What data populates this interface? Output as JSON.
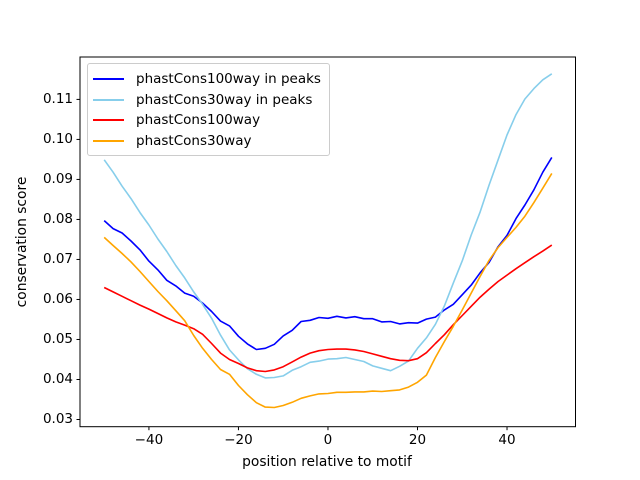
{
  "figure": {
    "background": "#ffffff",
    "axes": {
      "x_label": "position relative to motif",
      "y_label": "conservation score",
      "xlim": [
        -55.4,
        55.3
      ],
      "ylim": [
        0.0282,
        0.1206
      ],
      "x_ticks": [
        -40,
        -20,
        0,
        20,
        40
      ],
      "x_tick_labels": [
        "−40",
        "−20",
        "0",
        "20",
        "40"
      ],
      "y_ticks": [
        0.03,
        0.04,
        0.05,
        0.06,
        0.07,
        0.08,
        0.09,
        0.1,
        0.11
      ],
      "y_tick_labels": [
        "0.03",
        "0.04",
        "0.05",
        "0.06",
        "0.07",
        "0.08",
        "0.09",
        "0.10",
        "0.11"
      ],
      "spine_color": "#000000",
      "grid": false
    },
    "legend": {
      "position": "upper left",
      "border_color": "#cccccc",
      "background": "rgba(255,255,255,0.8)"
    }
  },
  "chart_data": {
    "type": "line",
    "title": "",
    "xlabel": "position relative to motif",
    "ylabel": "conservation score",
    "xlim": [
      -55.4,
      55.3
    ],
    "ylim": [
      0.0282,
      0.1206
    ],
    "grid": false,
    "legend_position": "upper left",
    "x": [
      -50,
      -48,
      -46,
      -44,
      -42,
      -40,
      -38,
      -36,
      -34,
      -32,
      -30,
      -28,
      -26,
      -24,
      -22,
      -20,
      -18,
      -16,
      -14,
      -12,
      -10,
      -8,
      -6,
      -4,
      -2,
      0,
      2,
      4,
      6,
      8,
      10,
      12,
      14,
      16,
      18,
      20,
      22,
      24,
      26,
      28,
      30,
      32,
      34,
      36,
      38,
      40,
      42,
      44,
      46,
      48,
      50
    ],
    "series": [
      {
        "name": "phastCons100way in peaks",
        "color": "#0000ff",
        "values": [
          0.0797,
          0.0777,
          0.0766,
          0.0746,
          0.0724,
          0.0696,
          0.0674,
          0.0648,
          0.0634,
          0.0616,
          0.0608,
          0.0591,
          0.057,
          0.0546,
          0.0534,
          0.0508,
          0.0489,
          0.0475,
          0.0478,
          0.0488,
          0.0509,
          0.0523,
          0.0545,
          0.0548,
          0.0555,
          0.0553,
          0.0558,
          0.0554,
          0.0557,
          0.0552,
          0.0552,
          0.0544,
          0.0545,
          0.0539,
          0.0542,
          0.0541,
          0.0551,
          0.0556,
          0.0574,
          0.0588,
          0.0612,
          0.0636,
          0.0667,
          0.0693,
          0.0732,
          0.076,
          0.0802,
          0.0836,
          0.0874,
          0.0918,
          0.0955
        ]
      },
      {
        "name": "phastCons30way in peaks",
        "color": "#87ceeb",
        "values": [
          0.0949,
          0.0918,
          0.0883,
          0.0852,
          0.0817,
          0.0786,
          0.0751,
          0.072,
          0.0685,
          0.0654,
          0.0619,
          0.0588,
          0.0553,
          0.0511,
          0.0474,
          0.0449,
          0.0427,
          0.0413,
          0.0404,
          0.0405,
          0.0409,
          0.0423,
          0.0432,
          0.0443,
          0.0446,
          0.0451,
          0.0452,
          0.0455,
          0.045,
          0.0445,
          0.0434,
          0.0428,
          0.0422,
          0.0433,
          0.0446,
          0.0478,
          0.0504,
          0.0538,
          0.0584,
          0.0641,
          0.0697,
          0.0761,
          0.0819,
          0.0886,
          0.0949,
          0.1011,
          0.1062,
          0.1101,
          0.1127,
          0.1149,
          0.1164
        ]
      },
      {
        "name": "phastCons100way",
        "color": "#ff0000",
        "values": [
          0.063,
          0.0619,
          0.0608,
          0.0597,
          0.0586,
          0.0576,
          0.0565,
          0.0554,
          0.0544,
          0.0536,
          0.0527,
          0.0513,
          0.049,
          0.0466,
          0.045,
          0.044,
          0.0429,
          0.0422,
          0.042,
          0.0424,
          0.0432,
          0.0444,
          0.0456,
          0.0466,
          0.0472,
          0.0475,
          0.0476,
          0.0476,
          0.0474,
          0.047,
          0.0464,
          0.0458,
          0.0452,
          0.0448,
          0.0447,
          0.0452,
          0.0467,
          0.049,
          0.0512,
          0.0537,
          0.056,
          0.0583,
          0.0606,
          0.0626,
          0.0645,
          0.0661,
          0.0677,
          0.0692,
          0.0707,
          0.0721,
          0.0736
        ]
      },
      {
        "name": "phastCons30way",
        "color": "#ffa500",
        "values": [
          0.0755,
          0.0735,
          0.0715,
          0.0694,
          0.067,
          0.0645,
          0.062,
          0.0597,
          0.0572,
          0.0547,
          0.051,
          0.0478,
          0.045,
          0.0425,
          0.0413,
          0.0385,
          0.0362,
          0.0342,
          0.0331,
          0.033,
          0.0335,
          0.0343,
          0.0353,
          0.0359,
          0.0364,
          0.0365,
          0.0368,
          0.0368,
          0.0369,
          0.0369,
          0.0371,
          0.037,
          0.0372,
          0.0374,
          0.0381,
          0.0393,
          0.0411,
          0.0455,
          0.0495,
          0.0533,
          0.0574,
          0.0616,
          0.0658,
          0.0698,
          0.073,
          0.0755,
          0.078,
          0.0808,
          0.0842,
          0.0878,
          0.0915
        ]
      }
    ]
  }
}
